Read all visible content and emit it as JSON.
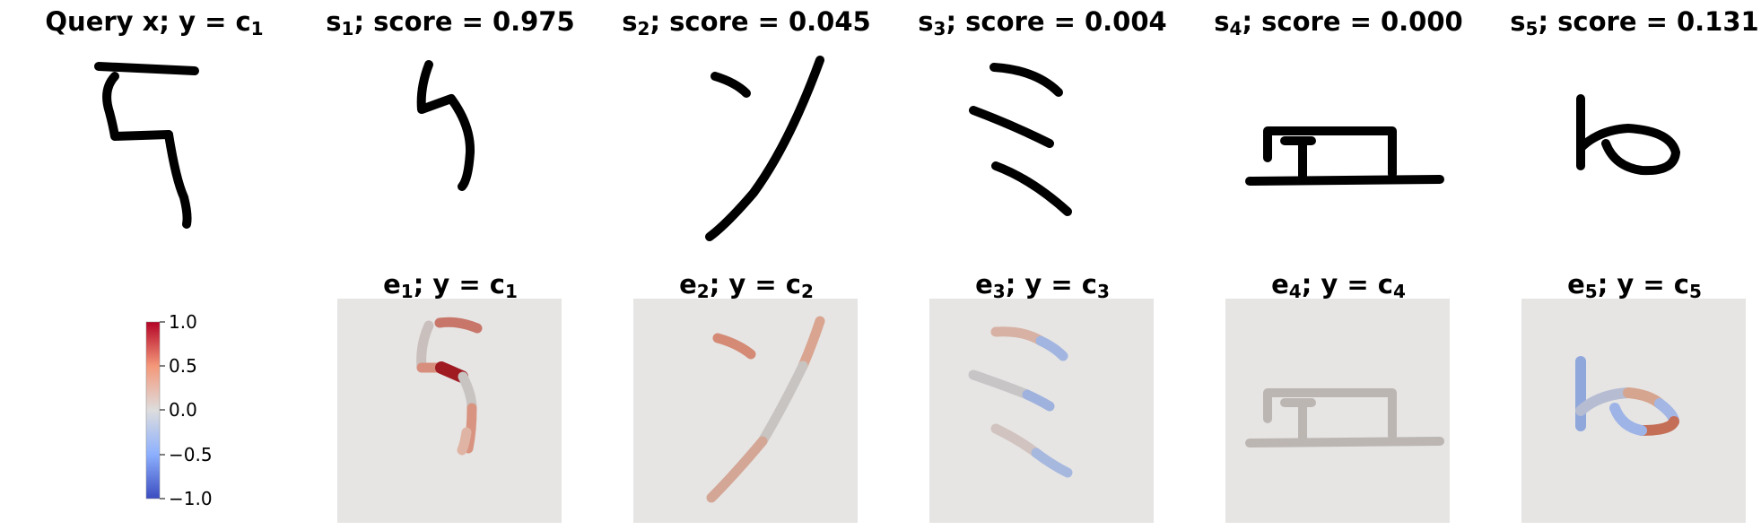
{
  "figure": {
    "query": {
      "title_main": "Query x; y = c",
      "title_sub": "1"
    },
    "support": [
      {
        "title_main": "s",
        "title_idx": "1",
        "title_rest": "; score = 0.975",
        "score": 0.975
      },
      {
        "title_main": "s",
        "title_idx": "2",
        "title_rest": "; score = 0.045",
        "score": 0.045
      },
      {
        "title_main": "s",
        "title_idx": "3",
        "title_rest": "; score = 0.004",
        "score": 0.004
      },
      {
        "title_main": "s",
        "title_idx": "4",
        "title_rest": "; score = 0.000",
        "score": 0.0
      },
      {
        "title_main": "s",
        "title_idx": "5",
        "title_rest": "; score = 0.131",
        "score": 0.131
      }
    ],
    "explanations": [
      {
        "title_main": "e",
        "title_idx": "1",
        "title_rest": "; y = c",
        "title_cls": "1"
      },
      {
        "title_main": "e",
        "title_idx": "2",
        "title_rest": "; y = c",
        "title_cls": "2"
      },
      {
        "title_main": "e",
        "title_idx": "3",
        "title_rest": "; y = c",
        "title_cls": "3"
      },
      {
        "title_main": "e",
        "title_idx": "4",
        "title_rest": "; y = c",
        "title_cls": "4"
      },
      {
        "title_main": "e",
        "title_idx": "5",
        "title_rest": "; y = c",
        "title_cls": "5"
      }
    ]
  },
  "chart_data": {
    "type": "heatmap",
    "colormap": "coolwarm",
    "colors": {
      "low": "#3b4cc0",
      "mid": "#dddddd",
      "high": "#b40426",
      "background": "#e6e5e4"
    },
    "colorbar": {
      "min": -1.0,
      "max": 1.0,
      "ticks": [
        "1.0",
        "0.5",
        "0.0",
        "−0.5",
        "−1.0"
      ],
      "tick_values": [
        1.0,
        0.5,
        0.0,
        -0.5,
        -1.0
      ]
    },
    "scores": [
      0.975,
      0.045,
      0.004,
      0.0,
      0.131
    ],
    "relevance_summary": [
      {
        "panel": "e1",
        "dominant": "positive",
        "peak": 1.0
      },
      {
        "panel": "e2",
        "dominant": "positive",
        "peak": 0.4
      },
      {
        "panel": "e3",
        "dominant": "mixed",
        "peak": 0.3
      },
      {
        "panel": "e4",
        "dominant": "neutral",
        "peak": 0.1
      },
      {
        "panel": "e5",
        "dominant": "mixed",
        "peak": 0.6
      }
    ]
  }
}
